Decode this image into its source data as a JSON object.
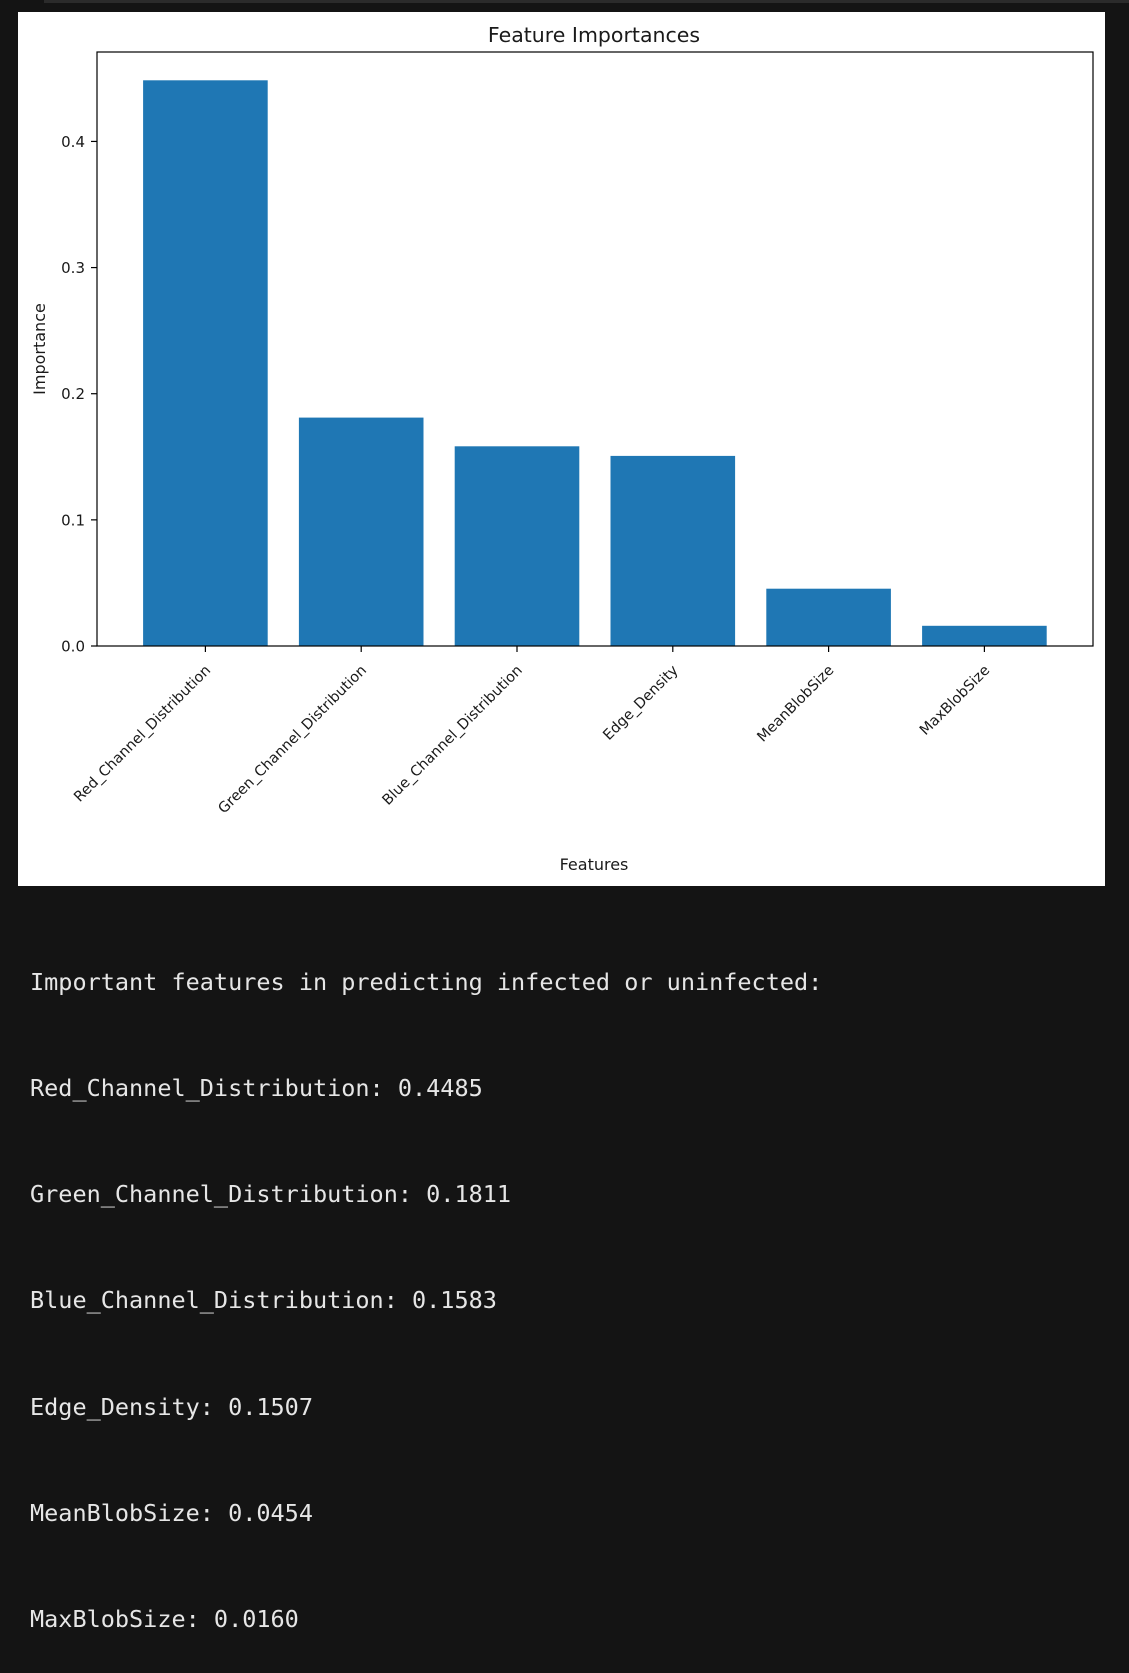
{
  "chart_data": {
    "type": "bar",
    "title": "Feature Importances",
    "xlabel": "Features",
    "ylabel": "Importance",
    "categories": [
      "Red_Channel_Distribution",
      "Green_Channel_Distribution",
      "Blue_Channel_Distribution",
      "Edge_Density",
      "MeanBlobSize",
      "MaxBlobSize"
    ],
    "values": [
      0.4485,
      0.1811,
      0.1583,
      0.1507,
      0.0454,
      0.016
    ],
    "yticks": [
      "0.0",
      "0.1",
      "0.2",
      "0.3",
      "0.4"
    ],
    "ylim": [
      0,
      0.4709
    ],
    "bar_color": "#1f77b4",
    "grid": false,
    "legend": false
  },
  "output": {
    "heading": "Important features in predicting infected or uninfected:",
    "lines": [
      "Red_Channel_Distribution: 0.4485",
      "Green_Channel_Distribution: 0.1811",
      "Blue_Channel_Distribution: 0.1583",
      "Edge_Density: 0.1507",
      "MeanBlobSize: 0.0454",
      "MaxBlobSize: 0.0160"
    ]
  }
}
